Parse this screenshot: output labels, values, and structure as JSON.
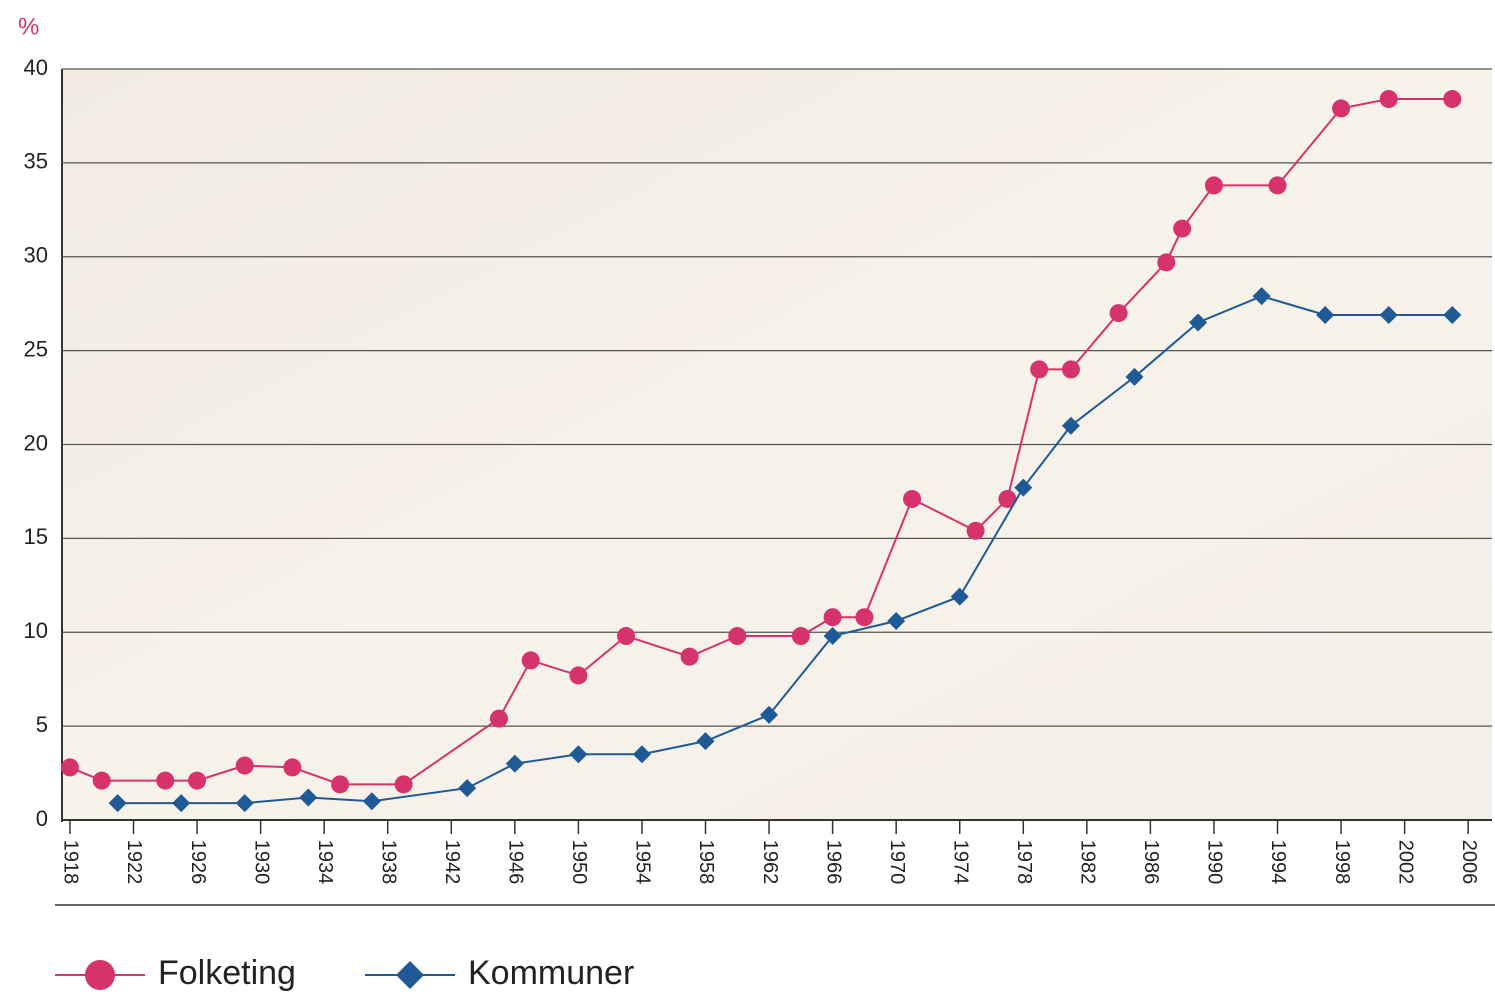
{
  "chart_data": {
    "type": "line",
    "y_label": "%",
    "xlim": [
      1917.5,
      2007.5
    ],
    "xticks": [
      1918,
      1922,
      1926,
      1930,
      1934,
      1938,
      1942,
      1946,
      1950,
      1954,
      1958,
      1962,
      1966,
      1970,
      1974,
      1978,
      1982,
      1986,
      1990,
      1994,
      1998,
      2002,
      2006
    ],
    "ylim": [
      0,
      40
    ],
    "yticks": [
      0,
      5,
      10,
      15,
      20,
      25,
      30,
      35,
      40
    ],
    "grid": true,
    "legend": "bottom",
    "series": [
      {
        "name": "Folketing",
        "color": "#d6336c",
        "marker": "circle",
        "x": [
          1918,
          1920,
          1924,
          1926,
          1929,
          1932,
          1935,
          1939,
          1945,
          1947,
          1950,
          1953,
          1957,
          1960,
          1964,
          1966,
          1968,
          1971,
          1975,
          1977,
          1979,
          1981,
          1984,
          1987,
          1988,
          1990,
          1994,
          1998,
          2001,
          2005
        ],
        "values": [
          2.8,
          2.1,
          2.1,
          2.1,
          2.9,
          2.8,
          1.9,
          1.9,
          5.4,
          8.5,
          7.7,
          9.8,
          8.7,
          9.8,
          9.8,
          10.8,
          10.8,
          17.1,
          15.4,
          17.1,
          24.0,
          24.0,
          27.0,
          29.7,
          31.5,
          33.8,
          33.8,
          37.9,
          38.4,
          38.4
        ]
      },
      {
        "name": "Kommuner",
        "color": "#1f5a96",
        "marker": "diamond",
        "x": [
          1921,
          1925,
          1929,
          1933,
          1937,
          1943,
          1946,
          1950,
          1954,
          1958,
          1962,
          1966,
          1970,
          1974,
          1978,
          1981,
          1985,
          1989,
          1993,
          1997,
          2001,
          2005
        ],
        "values": [
          0.9,
          0.9,
          0.9,
          1.2,
          1.0,
          1.7,
          3.0,
          3.5,
          3.5,
          4.2,
          5.6,
          9.8,
          10.6,
          11.9,
          17.7,
          21.0,
          23.6,
          26.5,
          27.9,
          26.9,
          26.9,
          26.9
        ]
      }
    ]
  }
}
